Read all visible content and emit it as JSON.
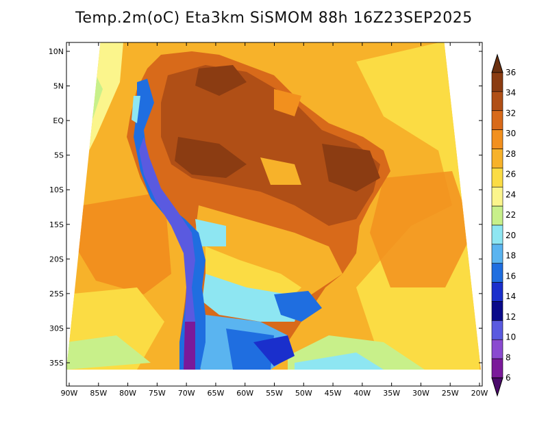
{
  "title": "Temp.2m(oC) Eta3km SiSMOM 88h 16Z23SEP2025",
  "chart_data": {
    "type": "heatmap",
    "title": "Temp.2m(oC) Eta3km SiSMOM 88h 16Z23SEP2025",
    "variable": "Temp.2m",
    "units": "oC",
    "model": "Eta3km SiSMOM",
    "forecast_hour": "88h",
    "valid_time": "16Z23SEP2025",
    "lon_range": [
      -90,
      -20
    ],
    "lat_range": [
      -38,
      12
    ],
    "x_tick_values": [
      -90,
      -85,
      -80,
      -75,
      -70,
      -65,
      -60,
      -55,
      -50,
      -45,
      -40,
      -35,
      -30,
      -25,
      -20
    ],
    "x_tick_labels": [
      "90W",
      "85W",
      "80W",
      "75W",
      "70W",
      "65W",
      "60W",
      "55W",
      "50W",
      "45W",
      "40W",
      "35W",
      "30W",
      "25W",
      "20W"
    ],
    "y_tick_values": [
      10,
      5,
      0,
      -5,
      -10,
      -15,
      -20,
      -25,
      -30,
      -35
    ],
    "y_tick_labels": [
      "10N",
      "5N",
      "EQ",
      "5S",
      "10S",
      "15S",
      "20S",
      "25S",
      "30S",
      "35S"
    ],
    "colorbar": {
      "labels": [
        "36",
        "34",
        "32",
        "30",
        "28",
        "26",
        "24",
        "22",
        "20",
        "18",
        "16",
        "14",
        "12",
        "10",
        "8",
        "6"
      ],
      "colors": [
        "#6b3010",
        "#8b3c12",
        "#b04f16",
        "#d86a1a",
        "#f2901e",
        "#f7b22a",
        "#fbdc44",
        "#fbf58c",
        "#c8f08a",
        "#8ee6f2",
        "#5ab4f0",
        "#1f6ee0",
        "#1a2fcc",
        "#0a0a8a",
        "#5a5ae0",
        "#8a4ad0",
        "#7a1a9a",
        "#4a0a6a"
      ]
    }
  },
  "colors": {
    "ocean_warm": "#f2901e",
    "ocean_mid": "#f7b22a",
    "ocean_yellow": "#fbdc44",
    "land_hot": "#b04f16",
    "land_very_hot": "#8b3c12",
    "andes": "#1a2fcc",
    "south_cool": "#5ab4f0"
  }
}
